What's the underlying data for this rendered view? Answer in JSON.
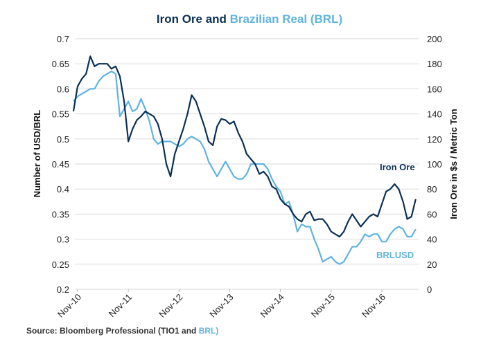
{
  "chart_data": {
    "type": "line",
    "title": "Iron Ore and Brazilian Real (BRL)",
    "title_parts": [
      {
        "text": "Iron Ore and ",
        "color": "#0b2f55"
      },
      {
        "text": "Brazilian Real (BRL)",
        "color": "#5fb3e0"
      }
    ],
    "xlabel": "",
    "ylabel_left": "Number of USD/BRL",
    "ylabel_right": "Iron Ore in $s / Metric Ton",
    "ylim_left": [
      0.2,
      0.7
    ],
    "ylim_right": [
      0,
      200
    ],
    "yticks_left": [
      "0.7",
      "0.65",
      "0.6",
      "0.55",
      "0.5",
      "0.45",
      "0.4",
      "0.35",
      "0.3",
      "0.25",
      "0.2"
    ],
    "yticks_right": [
      "200",
      "180",
      "160",
      "140",
      "120",
      "100",
      "80",
      "60",
      "40",
      "20",
      "0"
    ],
    "xticks": [
      "Nov-10",
      "Nov-11",
      "Nov-12",
      "Nov-13",
      "Nov-14",
      "Nov-15",
      "Nov-16"
    ],
    "grid": true,
    "x": [
      "2010-10",
      "2010-11",
      "2010-12",
      "2011-01",
      "2011-02",
      "2011-03",
      "2011-04",
      "2011-05",
      "2011-06",
      "2011-07",
      "2011-08",
      "2011-09",
      "2011-10",
      "2011-11",
      "2011-12",
      "2012-01",
      "2012-02",
      "2012-03",
      "2012-04",
      "2012-05",
      "2012-06",
      "2012-07",
      "2012-08",
      "2012-09",
      "2012-10",
      "2012-11",
      "2012-12",
      "2013-01",
      "2013-02",
      "2013-03",
      "2013-04",
      "2013-05",
      "2013-06",
      "2013-07",
      "2013-08",
      "2013-09",
      "2013-10",
      "2013-11",
      "2013-12",
      "2014-01",
      "2014-02",
      "2014-03",
      "2014-04",
      "2014-05",
      "2014-06",
      "2014-07",
      "2014-08",
      "2014-09",
      "2014-10",
      "2014-11",
      "2014-12",
      "2015-01",
      "2015-02",
      "2015-03",
      "2015-04",
      "2015-05",
      "2015-06",
      "2015-07",
      "2015-08",
      "2015-09",
      "2015-10",
      "2015-11",
      "2015-12",
      "2016-01",
      "2016-02",
      "2016-03",
      "2016-04",
      "2016-05",
      "2016-06",
      "2016-07",
      "2016-08",
      "2016-09",
      "2016-10",
      "2016-11",
      "2016-12",
      "2017-01",
      "2017-02",
      "2017-03",
      "2017-04",
      "2017-05",
      "2017-06",
      "2017-07"
    ],
    "series": [
      {
        "name": "Iron Ore",
        "axis": "right",
        "color": "#0b2f55",
        "values": [
          142,
          162,
          168,
          172,
          186,
          178,
          180,
          180,
          180,
          176,
          178,
          170,
          150,
          118,
          128,
          135,
          138,
          142,
          140,
          138,
          132,
          120,
          100,
          90,
          108,
          118,
          128,
          140,
          155,
          150,
          140,
          130,
          118,
          115,
          130,
          136,
          135,
          132,
          134,
          125,
          118,
          108,
          104,
          100,
          92,
          94,
          90,
          82,
          80,
          72,
          68,
          66,
          60,
          56,
          54,
          60,
          62,
          55,
          56,
          56,
          52,
          46,
          44,
          42,
          46,
          54,
          60,
          55,
          50,
          54,
          58,
          60,
          58,
          68,
          78,
          80,
          84,
          80,
          70,
          56,
          58,
          72
        ]
      },
      {
        "name": "BRLUSD",
        "axis": "left",
        "color": "#5fb3e0",
        "values": [
          0.575,
          0.585,
          0.59,
          0.595,
          0.6,
          0.6,
          0.615,
          0.625,
          0.63,
          0.635,
          0.63,
          0.545,
          0.56,
          0.575,
          0.555,
          0.56,
          0.58,
          0.56,
          0.535,
          0.5,
          0.49,
          0.495,
          0.495,
          0.495,
          0.49,
          0.485,
          0.49,
          0.5,
          0.505,
          0.5,
          0.495,
          0.48,
          0.455,
          0.44,
          0.425,
          0.44,
          0.455,
          0.44,
          0.425,
          0.42,
          0.42,
          0.43,
          0.45,
          0.45,
          0.45,
          0.45,
          0.44,
          0.42,
          0.405,
          0.395,
          0.37,
          0.375,
          0.35,
          0.315,
          0.33,
          0.325,
          0.325,
          0.3,
          0.28,
          0.255,
          0.26,
          0.265,
          0.255,
          0.25,
          0.255,
          0.27,
          0.285,
          0.285,
          0.295,
          0.31,
          0.305,
          0.31,
          0.31,
          0.295,
          0.295,
          0.31,
          0.32,
          0.325,
          0.32,
          0.305,
          0.305,
          0.32
        ]
      }
    ],
    "annotations": [
      {
        "text": "Iron Ore",
        "color": "#0b2f55"
      },
      {
        "text": "BRLUSD",
        "color": "#5fb3e0"
      }
    ]
  },
  "source": {
    "prefix": "Source: Bloomberg Professional (TIO1 and ",
    "highlight": "BRL)",
    "highlight_color": "#5fb3e0"
  }
}
